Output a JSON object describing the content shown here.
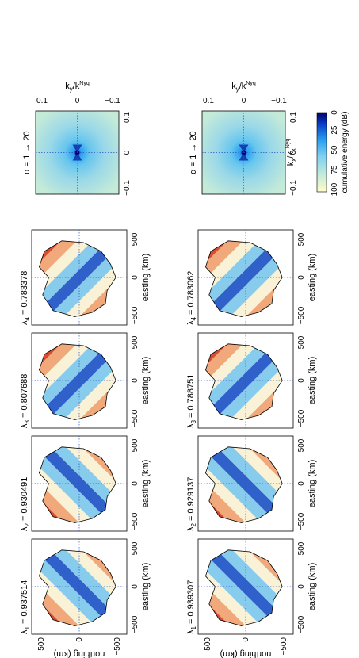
{
  "figure": {
    "orientation": "rotated-90-ccw",
    "rows": [
      {
        "panels": [
          {
            "label_sym": "λ",
            "index": "1",
            "value": "0.937514"
          },
          {
            "label_sym": "λ",
            "index": "2",
            "value": "0.930491"
          },
          {
            "label_sym": "λ",
            "index": "3",
            "value": "0.807688"
          },
          {
            "label_sym": "λ",
            "index": "4",
            "value": "0.783378"
          }
        ],
        "spectrum_label": "α = 1 → 20"
      },
      {
        "panels": [
          {
            "label_sym": "λ",
            "index": "1",
            "value": "0.939307"
          },
          {
            "label_sym": "λ",
            "index": "2",
            "value": "0.929137"
          },
          {
            "label_sym": "λ",
            "index": "3",
            "value": "0.788751"
          },
          {
            "label_sym": "λ",
            "index": "4",
            "value": "0.783062"
          }
        ],
        "spectrum_label": "α = 1 → 20"
      }
    ],
    "space_axes": {
      "xlabel": "easting (km)",
      "ylabel": "northing (km)",
      "ticks": [
        "−500",
        "0",
        "500"
      ]
    },
    "spectral_axes": {
      "xlabel_main": "k",
      "xlabel_sub": "x",
      "xlabel_sep": "/k",
      "xlabel_sup": "Nyq",
      "ylabel_main": "k",
      "ylabel_sub": "y",
      "ylabel_sep": "/k",
      "ylabel_sup": "Nyq",
      "ticks": [
        "−0.1",
        "0",
        "0.1"
      ]
    },
    "colorbar": {
      "label": "cumulative energy (dB)",
      "ticks": [
        "−100",
        "−75",
        "−50",
        "−25",
        "0"
      ],
      "colors": [
        "#fffcc8",
        "#c8ecd8",
        "#7fd0f0",
        "#2aa0f0",
        "#0a40c8",
        "#000070"
      ]
    }
  }
}
